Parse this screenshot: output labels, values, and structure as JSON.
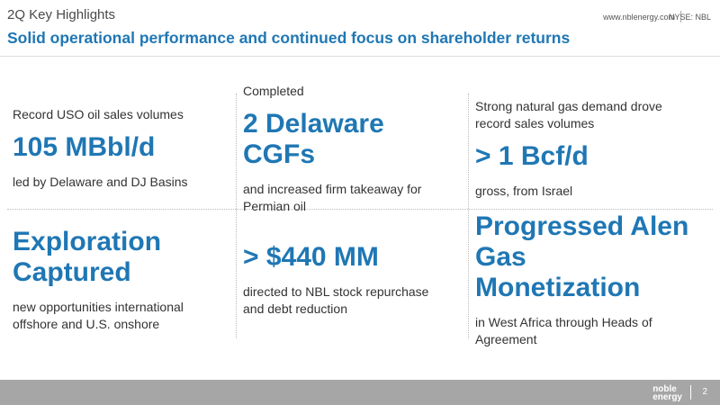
{
  "header": {
    "title": "2Q Key Highlights",
    "subtitle": "Solid operational performance and continued focus on shareholder returns",
    "website": "www.nblenergy.com",
    "ticker": "NYSE: NBL"
  },
  "cells": [
    {
      "lead": [
        "Record USO oil sales volumes"
      ],
      "headline": [
        "105 MBbl/d"
      ],
      "detail": [
        "led by Delaware and DJ Basins"
      ]
    },
    {
      "lead": [
        "Completed"
      ],
      "headline": [
        "2 Delaware CGFs"
      ],
      "detail": [
        "and increased firm takeaway for",
        "Permian oil"
      ]
    },
    {
      "lead": [
        "Strong natural gas demand drove",
        "record sales volumes"
      ],
      "headline": [
        "> 1 Bcf/d"
      ],
      "detail": [
        "gross, from Israel"
      ]
    },
    {
      "lead": [],
      "headline": [
        "Exploration",
        "Captured"
      ],
      "detail": [
        "new opportunities international",
        "offshore and U.S. onshore"
      ]
    },
    {
      "lead": [],
      "headline": [
        "> $440 MM"
      ],
      "detail": [
        "directed to NBL stock repurchase",
        "and debt reduction"
      ]
    },
    {
      "lead": [],
      "headline": [
        "Progressed Alen",
        "Gas Monetization"
      ],
      "detail": [
        "in West Africa through Heads of",
        "Agreement"
      ]
    }
  ],
  "footer": {
    "logo": [
      "noble",
      "energy"
    ],
    "page": "2"
  }
}
